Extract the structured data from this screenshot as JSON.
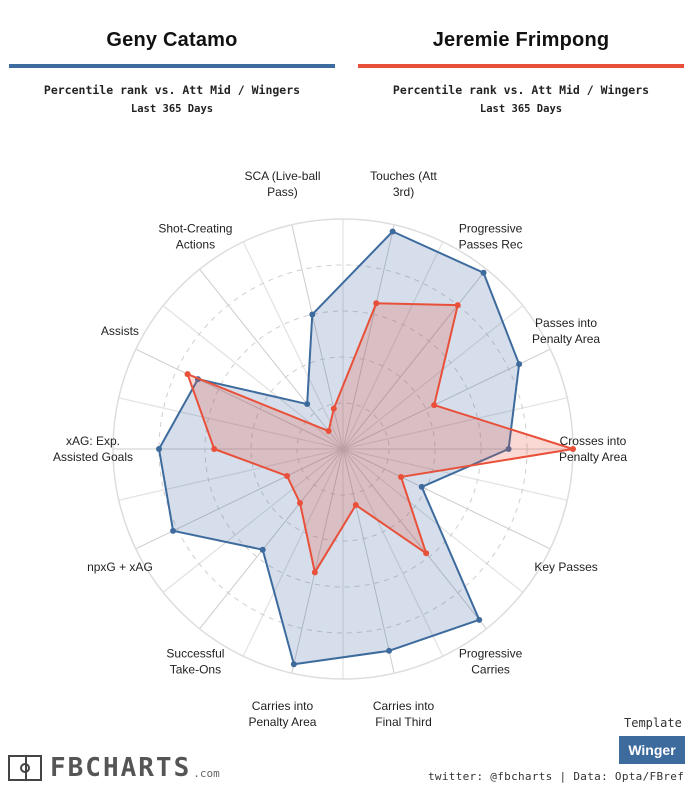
{
  "players": [
    {
      "name": "Geny Catamo",
      "color": "#3e6b9e",
      "subtitle": "Percentile rank vs. Att Mid / Wingers",
      "period": "Last 365 Days"
    },
    {
      "name": "Jeremie Frimpong",
      "color": "#e8503a",
      "subtitle": "Percentile rank vs. Att Mid / Wingers",
      "period": "Last 365 Days"
    }
  ],
  "chart_data": {
    "type": "radar",
    "scale": [
      0,
      100
    ],
    "grid_rings": [
      20,
      40,
      60,
      80,
      100
    ],
    "axes": [
      {
        "label": [
          "Touches (Att",
          "3rd)"
        ]
      },
      {
        "label": [
          "Progressive",
          "Passes Rec"
        ]
      },
      {
        "label": [
          "Passes into",
          "Penalty Area"
        ]
      },
      {
        "label": [
          "Crosses into",
          "Penalty Area"
        ]
      },
      {
        "label": [
          "Key Passes"
        ]
      },
      {
        "label": [
          "Progressive",
          "Carries"
        ]
      },
      {
        "label": [
          "Carries into",
          "Final Third"
        ]
      },
      {
        "label": [
          "Carries into",
          "Penalty Area"
        ]
      },
      {
        "label": [
          "Successful",
          "Take-Ons"
        ]
      },
      {
        "label": [
          "npxG + xAG"
        ]
      },
      {
        "label": [
          "xAG: Exp.",
          "Assisted Goals"
        ]
      },
      {
        "label": [
          "Assists"
        ]
      },
      {
        "label": [
          "Shot-Creating",
          "Actions"
        ]
      },
      {
        "label": [
          "SCA (Live-ball",
          "Pass)"
        ]
      }
    ],
    "series": [
      {
        "name": "Geny Catamo",
        "color": "#3e6b9e",
        "fill": "rgba(62,107,158,0.22)",
        "values": [
          97,
          98,
          85,
          72,
          38,
          95,
          90,
          96,
          56,
          82,
          80,
          70,
          25,
          60
        ]
      },
      {
        "name": "Jeremie Frimpong",
        "color": "#e8503a",
        "fill": "rgba(232,80,58,0.22)",
        "values": [
          65,
          80,
          44,
          100,
          28,
          58,
          25,
          55,
          30,
          27,
          56,
          75,
          10,
          18
        ]
      }
    ]
  },
  "branding": {
    "logo_text": "FBCHARTS",
    "logo_suffix": ".com"
  },
  "template": {
    "label": "Template",
    "value": "Winger"
  },
  "credits": "twitter: @fbcharts | Data: Opta/FBref"
}
